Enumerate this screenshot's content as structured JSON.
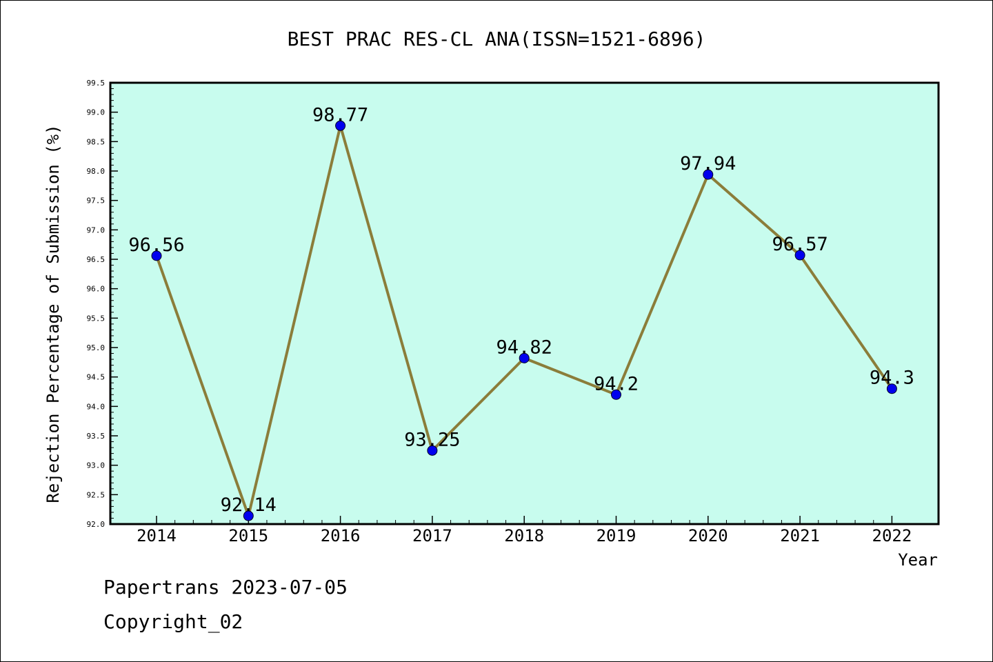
{
  "chart_data": {
    "type": "line",
    "title": "BEST PRAC RES-CL ANA(ISSN=1521-6896)",
    "xlabel": "Year",
    "ylabel": "Rejection Percentage of Submission (%)",
    "categories": [
      "2014",
      "2015",
      "2016",
      "2017",
      "2018",
      "2019",
      "2020",
      "2021",
      "2022"
    ],
    "values": [
      96.56,
      92.14,
      98.77,
      93.25,
      94.82,
      94.2,
      97.94,
      96.57,
      94.3
    ],
    "data_labels": [
      "96.56",
      "92.14",
      "98.77",
      "93.25",
      "94.82",
      "94.2",
      "97.94",
      "96.57",
      "94.3"
    ],
    "ylim": [
      92.0,
      99.5
    ],
    "yticks": [
      "92.0",
      "92.5",
      "93.0",
      "93.5",
      "94.0",
      "94.5",
      "95.0",
      "95.5",
      "96.0",
      "96.5",
      "97.0",
      "97.5",
      "98.0",
      "98.5",
      "99.0",
      "99.5"
    ],
    "grid": false,
    "colors": {
      "plot_background": "#c8fcee",
      "line": "#8b7d3a",
      "marker": "#0000ee",
      "axis": "#000000"
    }
  },
  "footer": {
    "line1": "Papertrans 2023-07-05",
    "line2": "Copyright_02"
  }
}
